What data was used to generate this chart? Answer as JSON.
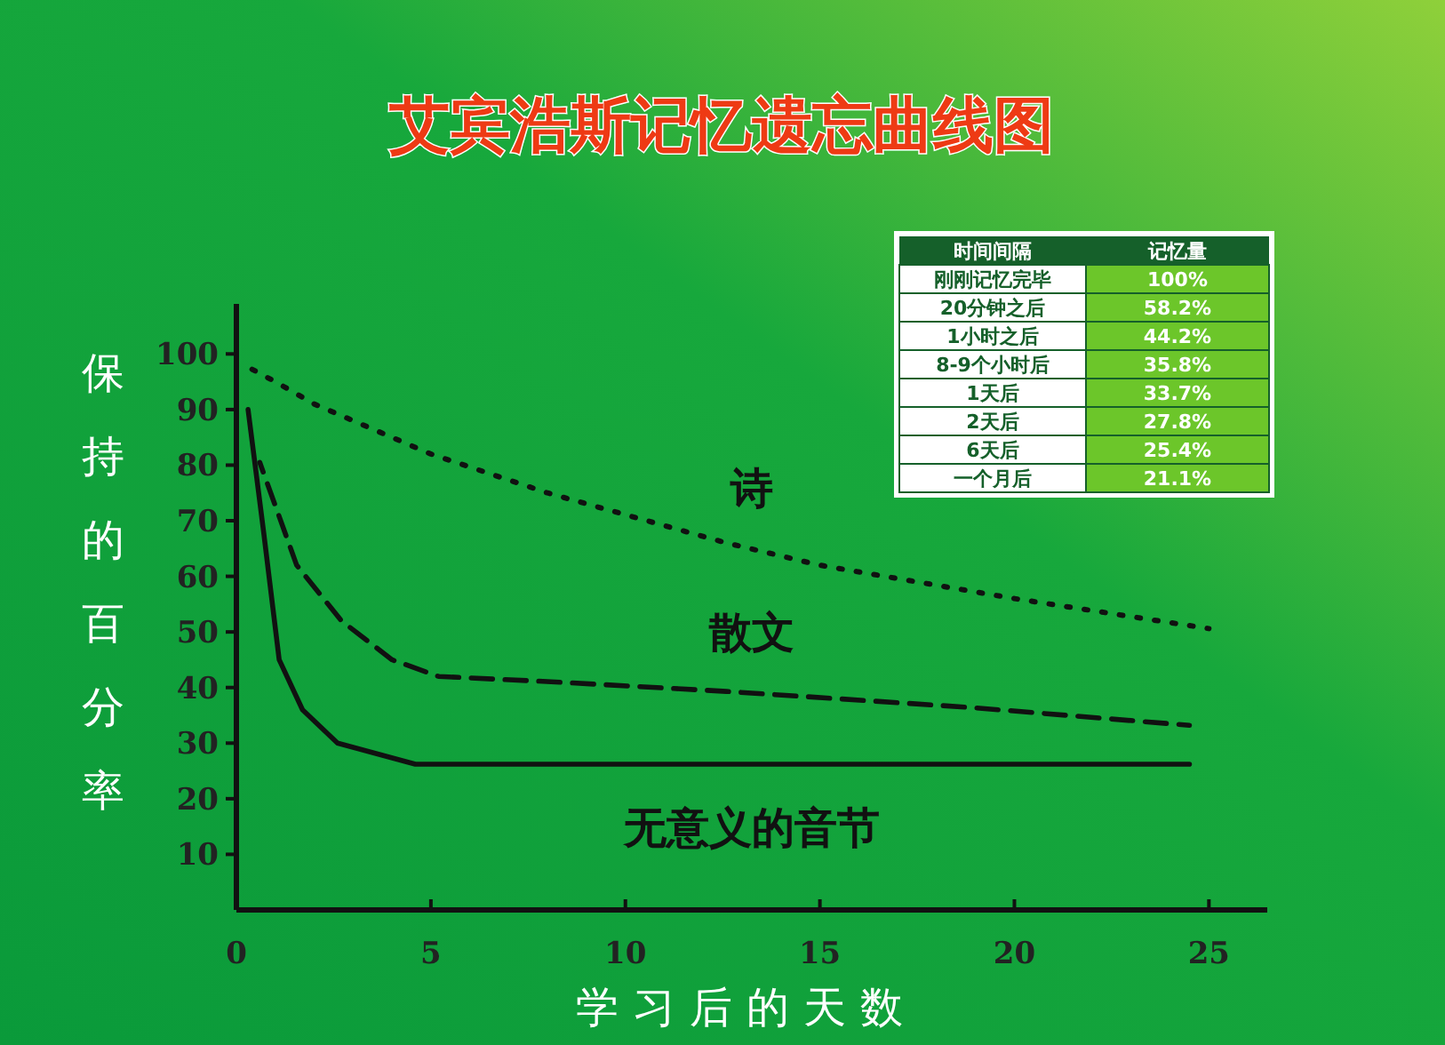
{
  "chart_data": [
    {
      "type": "line",
      "title": "艾宾浩斯记忆遗忘曲线图",
      "xlabel": "学习后的天数",
      "ylabel": "保持的百分率",
      "xlim": [
        0,
        26.5
      ],
      "ylim": [
        0,
        109
      ],
      "xticks": [
        0,
        5,
        10,
        15,
        20,
        25
      ],
      "yticks": [
        10,
        20,
        30,
        40,
        50,
        60,
        70,
        80,
        90,
        100
      ],
      "grid": false,
      "series": [
        {
          "name": "诗",
          "color": "#111111",
          "line_style": "dotted",
          "x": [
            0.2,
            1,
            2,
            3,
            5,
            8,
            12.6,
            15,
            20,
            25
          ],
          "values": [
            98,
            95,
            91,
            88,
            82,
            75,
            66,
            62,
            56,
            50.6
          ]
        },
        {
          "name": "散文",
          "color": "#111111",
          "line_style": "dashed",
          "x": [
            0.6,
            1.55,
            2.7,
            4,
            5.2,
            8.2,
            12.6,
            18.9,
            24.5
          ],
          "values": [
            80.5,
            62,
            52,
            45,
            42,
            41,
            39.3,
            36.4,
            33.2
          ]
        },
        {
          "name": "无意义的音节",
          "color": "#111111",
          "line_style": "solid",
          "x": [
            0.3,
            0.7,
            1.1,
            1.7,
            2.6,
            4.6,
            24.5
          ],
          "values": [
            90,
            68,
            45,
            36,
            30,
            26.2,
            26.2
          ]
        }
      ]
    },
    {
      "type": "other",
      "annotations": [
        "时间间隔",
        "记忆量"
      ],
      "categories": [
        "刚刚记忆完毕",
        "20分钟之后",
        "1小时之后",
        "8-9个小时后",
        "1天后",
        "2天后",
        "6天后",
        "一个月后"
      ],
      "value_labels": [
        "100%",
        "58.2%",
        "44.2%",
        "35.8%",
        "33.7%",
        "27.8%",
        "25.4%",
        "21.1%"
      ]
    }
  ]
}
